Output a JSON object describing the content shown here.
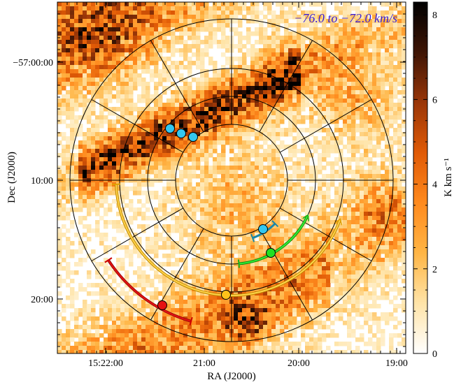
{
  "chart_data": {
    "type": "heatmap",
    "title": "",
    "velocity_label": "−76.0 to −72.0 km/s",
    "xlabel": "RA (J2000)",
    "ylabel": "Dec (J2000)",
    "x_ticks": [
      "15:22:00",
      "21:00",
      "20:00",
      "19:00"
    ],
    "y_ticks": [
      "−57:00:00",
      "10:00",
      "20:00"
    ],
    "colorbar": {
      "label": "K km s⁻¹",
      "ticks": [
        0,
        2,
        4,
        6,
        8
      ],
      "range": [
        0,
        8.3
      ],
      "colormap": [
        "#ffffff",
        "#ffe4a8",
        "#ffb545",
        "#ff8a1e",
        "#e05a06",
        "#9a3608",
        "#3e1505",
        "#000000"
      ]
    },
    "overlay": {
      "rings": 4,
      "spokes": 12
    },
    "markers": [
      {
        "name": "cyan-1",
        "color": "#33c7f0"
      },
      {
        "name": "cyan-2",
        "color": "#33c7f0"
      },
      {
        "name": "cyan-3",
        "color": "#33c7f0"
      },
      {
        "name": "cyan-4",
        "color": "#33c7f0"
      },
      {
        "name": "green",
        "color": "#22e022"
      },
      {
        "name": "yellow",
        "color": "#ffc21a"
      },
      {
        "name": "red",
        "color": "#e51212"
      }
    ],
    "annotation_color": "#3a1fd6"
  }
}
